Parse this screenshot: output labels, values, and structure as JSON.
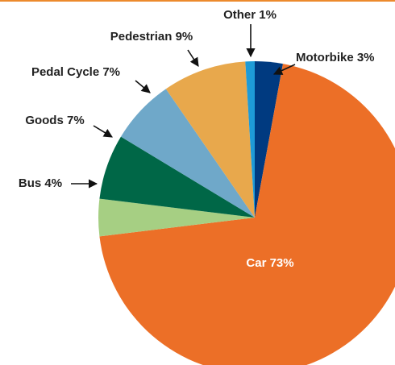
{
  "chart_data": {
    "type": "pie",
    "categories": [
      "Motorbike",
      "Car",
      "Bus",
      "Goods",
      "Pedal Cycle",
      "Pedestrian",
      "Other"
    ],
    "values": [
      3,
      73,
      4,
      7,
      7,
      9,
      1
    ],
    "value_labels": [
      "3%",
      "73%",
      "4%",
      "7%",
      "7%",
      "9%",
      "1%"
    ],
    "colors": [
      "#003a80",
      "#ec6f27",
      "#a6cf83",
      "#006747",
      "#6fa8c9",
      "#e8a84c",
      "#1e9bd7"
    ]
  }
}
